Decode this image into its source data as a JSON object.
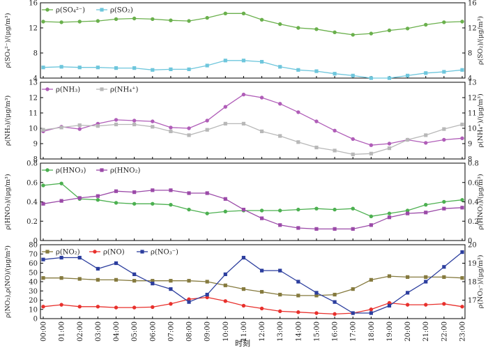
{
  "figure": {
    "xlabel": "时刻"
  },
  "chart_data": [
    {
      "type": "line",
      "x": [
        "00:00",
        "01:00",
        "02:00",
        "03:00",
        "04:00",
        "05:00",
        "06:00",
        "07:00",
        "08:00",
        "09:00",
        "10:00",
        "11:00",
        "12:00",
        "13:00",
        "14:00",
        "15:00",
        "16:00",
        "17:00",
        "18:00",
        "19:00",
        "20:00",
        "21:00",
        "22:00",
        "23:00"
      ],
      "ylabel_left": "ρ(SO₄²⁻)/(μg/m³)",
      "ylabel_right": "ρ(SO₂)/(μg/m³)",
      "ylim_left": [
        4,
        16
      ],
      "yticks_left": [
        4,
        8,
        12,
        16
      ],
      "ylim_right": [
        4,
        16
      ],
      "yticks_right": [
        4,
        8,
        12,
        16
      ],
      "legend": "top-left",
      "grid": false,
      "series": [
        {
          "name": "ρ(SO₄²⁻)",
          "axis": "left",
          "marker": "circle",
          "color": "#6ab04c",
          "values": [
            13.0,
            12.9,
            13.0,
            13.1,
            13.4,
            13.5,
            13.4,
            13.2,
            13.1,
            13.6,
            14.3,
            14.3,
            13.3,
            12.6,
            12.0,
            11.8,
            11.3,
            10.9,
            11.1,
            11.6,
            11.9,
            12.5,
            12.9,
            13.0
          ]
        },
        {
          "name": "ρ(SO₂)",
          "axis": "right",
          "marker": "square",
          "color": "#6ec6dc",
          "values": [
            5.7,
            5.8,
            5.7,
            5.7,
            5.6,
            5.6,
            5.3,
            5.4,
            5.4,
            6.0,
            6.8,
            6.8,
            6.6,
            5.8,
            5.3,
            5.1,
            4.7,
            4.4,
            4.0,
            4.0,
            4.4,
            4.8,
            5.0,
            5.3
          ]
        }
      ]
    },
    {
      "type": "line",
      "x": [
        "00:00",
        "01:00",
        "02:00",
        "03:00",
        "04:00",
        "05:00",
        "06:00",
        "07:00",
        "08:00",
        "09:00",
        "10:00",
        "11:00",
        "12:00",
        "13:00",
        "14:00",
        "15:00",
        "16:00",
        "17:00",
        "18:00",
        "19:00",
        "20:00",
        "21:00",
        "22:00",
        "23:00"
      ],
      "ylabel_left": "ρ(NH₃)/(μg/m³)",
      "ylabel_right": "ρ(NH₄⁺)/(μg/m³)",
      "ylim_left": [
        8,
        13
      ],
      "yticks_left": [
        8,
        9,
        10,
        11,
        12,
        13
      ],
      "ylim_right": [
        8,
        13
      ],
      "yticks_right": [
        8,
        9,
        10,
        11,
        12,
        13
      ],
      "legend": "top-left",
      "grid": false,
      "series": [
        {
          "name": "ρ(NH₃)",
          "axis": "left",
          "marker": "circle",
          "color": "#b05db8",
          "values": [
            9.8,
            10.1,
            9.95,
            10.3,
            10.55,
            10.5,
            10.45,
            10.05,
            10.0,
            10.5,
            11.4,
            12.2,
            12.0,
            11.6,
            11.05,
            10.45,
            9.85,
            9.3,
            8.9,
            9.0,
            9.25,
            9.05,
            9.25,
            9.35
          ]
        },
        {
          "name": "ρ(NH₄⁺)",
          "axis": "right",
          "marker": "square",
          "color": "#b8b8b8",
          "values": [
            9.9,
            10.05,
            10.2,
            10.15,
            10.25,
            10.25,
            10.1,
            9.8,
            9.55,
            9.9,
            10.3,
            10.3,
            9.8,
            9.5,
            9.1,
            8.75,
            8.55,
            8.3,
            8.35,
            8.7,
            9.25,
            9.55,
            9.95,
            10.25
          ]
        }
      ]
    },
    {
      "type": "line",
      "x": [
        "00:00",
        "01:00",
        "02:00",
        "03:00",
        "04:00",
        "05:00",
        "06:00",
        "07:00",
        "08:00",
        "09:00",
        "10:00",
        "11:00",
        "12:00",
        "13:00",
        "14:00",
        "15:00",
        "16:00",
        "17:00",
        "18:00",
        "19:00",
        "20:00",
        "21:00",
        "22:00",
        "23:00"
      ],
      "ylabel_left": "ρ(HNO₃)/(μg/m³)",
      "ylabel_right": "ρ(HNO₂)/(μg/m³)",
      "ylim_left": [
        0,
        0.8
      ],
      "yticks_left": [
        0,
        0.2,
        0.4,
        0.6,
        0.8
      ],
      "ylim_right": [
        0,
        0.8
      ],
      "yticks_right": [
        0,
        0.2,
        0.4,
        0.6,
        0.8
      ],
      "legend": "top-left",
      "grid": false,
      "series": [
        {
          "name": "ρ(HNO₃)",
          "axis": "left",
          "marker": "circle",
          "color": "#4cb050",
          "values": [
            0.57,
            0.59,
            0.43,
            0.42,
            0.39,
            0.38,
            0.38,
            0.37,
            0.32,
            0.28,
            0.3,
            0.31,
            0.31,
            0.31,
            0.32,
            0.33,
            0.32,
            0.33,
            0.25,
            0.28,
            0.31,
            0.37,
            0.4,
            0.42
          ]
        },
        {
          "name": "ρ(HNO₂)",
          "axis": "right",
          "marker": "square",
          "color": "#9b4aa8",
          "values": [
            0.38,
            0.41,
            0.44,
            0.46,
            0.51,
            0.5,
            0.52,
            0.52,
            0.49,
            0.49,
            0.43,
            0.32,
            0.23,
            0.16,
            0.13,
            0.12,
            0.12,
            0.12,
            0.16,
            0.24,
            0.28,
            0.29,
            0.33,
            0.34
          ]
        }
      ]
    },
    {
      "type": "line",
      "x": [
        "00:00",
        "01:00",
        "02:00",
        "03:00",
        "04:00",
        "05:00",
        "06:00",
        "07:00",
        "08:00",
        "09:00",
        "10:00",
        "11:00",
        "12:00",
        "13:00",
        "14:00",
        "15:00",
        "16:00",
        "17:00",
        "18:00",
        "19:00",
        "20:00",
        "21:00",
        "22:00",
        "23:00"
      ],
      "ylabel_left": "ρ(NO₂),ρ(NO)/(μg/m³)",
      "ylabel_right": "ρ(NO₃⁻)/(μg/m³)",
      "ylim_left": [
        0,
        80
      ],
      "yticks_left": [
        0,
        10,
        20,
        30,
        40,
        50,
        60,
        70,
        80
      ],
      "ylim_right": [
        16,
        20
      ],
      "yticks_right": [
        17,
        18,
        19,
        20
      ],
      "legend": "top-left",
      "grid": false,
      "series": [
        {
          "name": "ρ(NO₂)",
          "axis": "left",
          "marker": "square",
          "color": "#857a3e",
          "values": [
            44,
            44,
            43,
            42,
            42,
            41,
            41,
            41,
            41,
            40,
            36,
            32,
            29,
            26,
            25,
            25,
            26,
            32,
            42,
            46,
            45,
            45,
            45,
            44
          ]
        },
        {
          "name": "ρ(NO)",
          "axis": "left",
          "marker": "circle",
          "color": "#e8302c",
          "values": [
            13,
            15,
            13,
            13,
            12,
            12,
            12.5,
            16,
            21,
            23,
            19,
            14,
            11,
            8,
            7,
            6,
            5,
            6,
            10,
            17,
            15,
            15,
            16,
            13
          ]
        },
        {
          "name": "ρ(NO₃⁻)",
          "axis": "right",
          "marker": "square",
          "color": "#2c3e9e",
          "values": [
            19.2,
            19.3,
            19.3,
            18.7,
            19.0,
            18.4,
            17.9,
            17.6,
            16.9,
            17.3,
            18.4,
            19.3,
            18.6,
            18.6,
            18.0,
            17.4,
            16.9,
            16.3,
            16.3,
            16.7,
            17.4,
            18.0,
            18.8,
            19.6
          ]
        }
      ]
    }
  ]
}
